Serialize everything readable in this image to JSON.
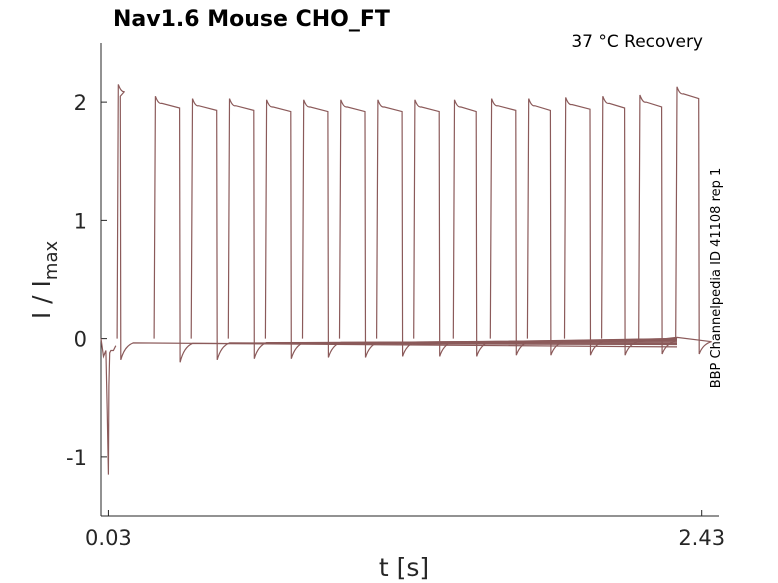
{
  "chart_data": {
    "type": "line",
    "title": "Nav1.6  Mouse  CHO_FT",
    "subtitle": "37 °C  Recovery",
    "side_note": "BBP Channelpedia ID 41108 rep 1",
    "xlabel": "t [s]",
    "ylabel": "I / I",
    "ylabel_subscript": "max",
    "xlim": [
      0.0,
      2.5
    ],
    "ylim": [
      -1.5,
      2.5
    ],
    "x_tick_labels": [
      "0.03",
      "2.43"
    ],
    "x_ticks": [
      0.03,
      2.43
    ],
    "y_ticks": [
      -1,
      0,
      1,
      2
    ],
    "y_tick_labels": [
      "-1",
      "0",
      "1",
      "2"
    ],
    "grid": false,
    "color": "#8b5a5a",
    "initial_transient": {
      "x": [
        0.0,
        0.01,
        0.02,
        0.025,
        0.03,
        0.032,
        0.035,
        0.04,
        0.05,
        0.06
      ],
      "y": [
        0.0,
        -0.15,
        -0.1,
        -0.6,
        -1.15,
        -0.4,
        -0.12,
        -0.1,
        -0.1,
        -0.06
      ]
    },
    "pulses": {
      "start_x": [
        0.07,
        0.22,
        0.37,
        0.52,
        0.67,
        0.82,
        0.97,
        1.12,
        1.27,
        1.43,
        1.58,
        1.73,
        1.88,
        2.03,
        2.18,
        2.33
      ],
      "peak_y": [
        2.15,
        2.05,
        2.03,
        2.03,
        2.02,
        2.02,
        2.02,
        2.02,
        2.02,
        2.02,
        2.03,
        2.03,
        2.04,
        2.05,
        2.06,
        2.13
      ],
      "end_x": [
        0.08,
        0.32,
        0.47,
        0.62,
        0.77,
        0.92,
        1.07,
        1.22,
        1.37,
        1.52,
        1.68,
        1.82,
        1.98,
        2.12,
        2.27,
        2.42
      ],
      "post_dip_y": [
        -0.18,
        -0.2,
        -0.18,
        -0.17,
        -0.17,
        -0.16,
        -0.16,
        -0.15,
        -0.15,
        -0.15,
        -0.14,
        -0.14,
        -0.14,
        -0.14,
        -0.13,
        -0.13
      ],
      "baseline_end_y": [
        -0.07,
        -0.05,
        -0.04,
        -0.03,
        -0.02,
        -0.02,
        -0.01,
        -0.01,
        0.0,
        0.0,
        0.0,
        0.0,
        0.0,
        0.01,
        0.01,
        0.01
      ]
    }
  }
}
